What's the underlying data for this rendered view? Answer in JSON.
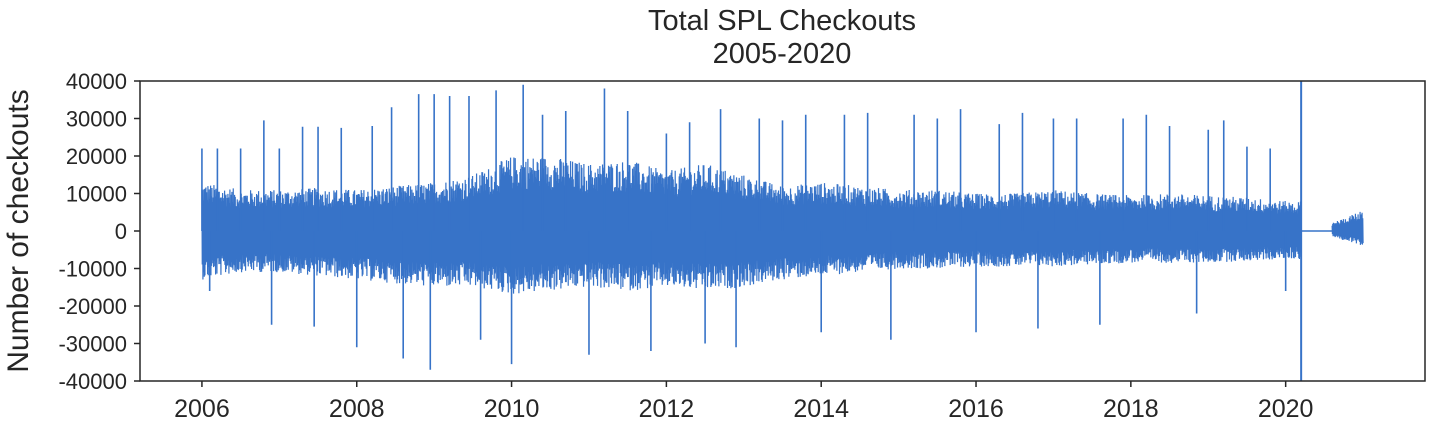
{
  "chart_data": {
    "type": "line",
    "title": "Total SPL Checkouts",
    "subtitle": "2005-2020",
    "xlabel": "",
    "ylabel": "Number of checkouts",
    "xlim": [
      2005.2,
      2021.8
    ],
    "ylim": [
      -40000,
      40000
    ],
    "x_ticks": [
      "2006",
      "2008",
      "2010",
      "2012",
      "2014",
      "2016",
      "2018",
      "2020"
    ],
    "y_ticks": [
      "-40000",
      "-30000",
      "-20000",
      "-10000",
      "0",
      "10000",
      "20000",
      "30000",
      "40000"
    ],
    "grid": false,
    "legend": "none",
    "series_color": "#3773c8",
    "vertical_marker": {
      "x": 2020.2,
      "color": "#3773c8"
    },
    "envelope": {
      "description": "Daily differenced checkouts oscillating around zero; typical upper and lower envelope per period with occasional spikes",
      "x": [
        2006.0,
        2006.5,
        2007.0,
        2007.5,
        2008.0,
        2008.5,
        2009.0,
        2009.5,
        2010.0,
        2010.5,
        2011.0,
        2011.5,
        2012.0,
        2012.5,
        2013.0,
        2013.5,
        2014.0,
        2014.5,
        2015.0,
        2015.5,
        2016.0,
        2016.5,
        2017.0,
        2017.5,
        2018.0,
        2018.5,
        2019.0,
        2019.5,
        2020.0,
        2020.2
      ],
      "upper": [
        13000,
        11000,
        11000,
        11500,
        11000,
        12000,
        13000,
        15000,
        20000,
        20000,
        18000,
        19000,
        16000,
        18000,
        15000,
        12000,
        13000,
        12000,
        11000,
        11000,
        10000,
        10000,
        11000,
        10000,
        9500,
        10000,
        9500,
        9000,
        8000,
        8000
      ],
      "lower": [
        -13000,
        -11000,
        -11000,
        -12000,
        -13000,
        -14000,
        -15000,
        -15000,
        -17000,
        -16000,
        -15000,
        -16000,
        -15000,
        -16000,
        -15000,
        -13000,
        -12000,
        -11000,
        -10000,
        -10000,
        -9500,
        -9500,
        -9500,
        -9000,
        -8500,
        -8500,
        -8500,
        -8000,
        -7500,
        -7500
      ]
    },
    "spikes": [
      {
        "x": 2006.0,
        "y": 22000
      },
      {
        "x": 2006.1,
        "y": -16000
      },
      {
        "x": 2006.2,
        "y": 22000
      },
      {
        "x": 2006.5,
        "y": 22000
      },
      {
        "x": 2006.8,
        "y": 29500
      },
      {
        "x": 2006.9,
        "y": -25000
      },
      {
        "x": 2007.0,
        "y": 22000
      },
      {
        "x": 2007.3,
        "y": 27800
      },
      {
        "x": 2007.45,
        "y": -25500
      },
      {
        "x": 2007.5,
        "y": 27800
      },
      {
        "x": 2007.8,
        "y": 27500
      },
      {
        "x": 2008.0,
        "y": -31000
      },
      {
        "x": 2008.2,
        "y": 28000
      },
      {
        "x": 2008.45,
        "y": 33000
      },
      {
        "x": 2008.6,
        "y": -34000
      },
      {
        "x": 2008.8,
        "y": 36500
      },
      {
        "x": 2008.95,
        "y": -37000
      },
      {
        "x": 2009.0,
        "y": 36500
      },
      {
        "x": 2009.2,
        "y": 36000
      },
      {
        "x": 2009.45,
        "y": 36000
      },
      {
        "x": 2009.6,
        "y": -29000
      },
      {
        "x": 2009.8,
        "y": 37500
      },
      {
        "x": 2010.0,
        "y": -35500
      },
      {
        "x": 2010.15,
        "y": 39000
      },
      {
        "x": 2010.4,
        "y": 31000
      },
      {
        "x": 2010.7,
        "y": 32000
      },
      {
        "x": 2011.0,
        "y": -33000
      },
      {
        "x": 2011.2,
        "y": 38000
      },
      {
        "x": 2011.5,
        "y": 32000
      },
      {
        "x": 2011.8,
        "y": -32000
      },
      {
        "x": 2012.0,
        "y": 26000
      },
      {
        "x": 2012.3,
        "y": 29000
      },
      {
        "x": 2012.5,
        "y": -30000
      },
      {
        "x": 2012.7,
        "y": 32500
      },
      {
        "x": 2012.9,
        "y": -31000
      },
      {
        "x": 2013.2,
        "y": 30000
      },
      {
        "x": 2013.5,
        "y": 29500
      },
      {
        "x": 2013.8,
        "y": 31000
      },
      {
        "x": 2014.0,
        "y": -27000
      },
      {
        "x": 2014.3,
        "y": 31000
      },
      {
        "x": 2014.6,
        "y": 31500
      },
      {
        "x": 2014.9,
        "y": -29000
      },
      {
        "x": 2015.2,
        "y": 31000
      },
      {
        "x": 2015.5,
        "y": 30000
      },
      {
        "x": 2015.8,
        "y": 32500
      },
      {
        "x": 2016.0,
        "y": -27000
      },
      {
        "x": 2016.3,
        "y": 28500
      },
      {
        "x": 2016.6,
        "y": 31500
      },
      {
        "x": 2016.8,
        "y": -26000
      },
      {
        "x": 2017.0,
        "y": 30000
      },
      {
        "x": 2017.3,
        "y": 30000
      },
      {
        "x": 2017.6,
        "y": -25000
      },
      {
        "x": 2017.9,
        "y": 30000
      },
      {
        "x": 2018.2,
        "y": 31000
      },
      {
        "x": 2018.5,
        "y": 28000
      },
      {
        "x": 2018.85,
        "y": -22000
      },
      {
        "x": 2019.0,
        "y": 27000
      },
      {
        "x": 2019.2,
        "y": 29500
      },
      {
        "x": 2019.5,
        "y": 22500
      },
      {
        "x": 2019.8,
        "y": 22000
      },
      {
        "x": 2020.0,
        "y": -16000
      }
    ],
    "post_gap": {
      "flat": {
        "x": [
          2020.2,
          2020.6
        ],
        "y": 0
      },
      "x": [
        2020.6,
        2021.0
      ],
      "upper": 5500,
      "lower": -4000
    }
  }
}
